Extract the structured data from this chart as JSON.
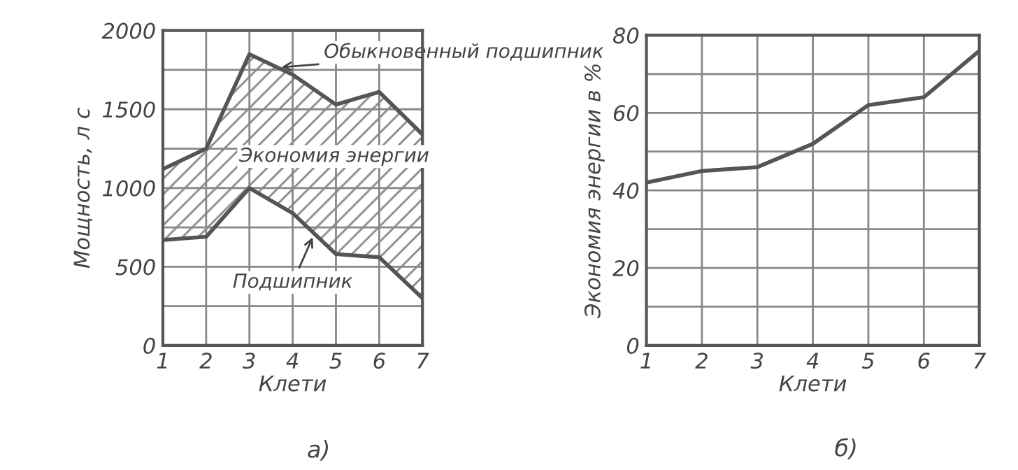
{
  "chart_data": [
    {
      "type": "line",
      "xlabel": "Клети",
      "ylabel": "Мощность, л с",
      "x": [
        1,
        2,
        3,
        4,
        5,
        6,
        7
      ],
      "xlim": [
        1,
        7
      ],
      "xticks": [
        1,
        2,
        3,
        4,
        5,
        6,
        7
      ],
      "ylim": [
        0,
        2000
      ],
      "yticks": [
        0,
        {
          "value": 250,
          "label": null
        },
        500,
        {
          "value": 750,
          "label": null
        },
        1000,
        {
          "value": 1250,
          "label": null
        },
        1500,
        {
          "value": 1750,
          "label": null
        },
        2000
      ],
      "grid": true,
      "legend": false,
      "series": [
        {
          "name": "Обыкновенный подшипник",
          "color": "#555555",
          "values": [
            1120,
            1250,
            1850,
            1720,
            1530,
            1610,
            1340
          ],
          "lower": [
            670,
            690,
            1000,
            840,
            580,
            560,
            300
          ],
          "upper": [
            1120,
            1250,
            1850,
            1720,
            1530,
            1610,
            1340
          ]
        },
        {
          "name": "Подшипник",
          "color": "#555555",
          "values": [
            670,
            690,
            1000,
            840,
            580,
            560,
            300
          ]
        }
      ],
      "annotations": [
        "Экономия энергии",
        "а)"
      ]
    },
    {
      "type": "line",
      "xlabel": "Клети",
      "ylabel": "Экономия энергии в %",
      "x": [
        1,
        2,
        3,
        4,
        5,
        6,
        7
      ],
      "xlim": [
        1,
        7
      ],
      "xticks": [
        1,
        2,
        3,
        4,
        5,
        6,
        7
      ],
      "ylim": [
        0,
        80
      ],
      "yticks": [
        0,
        {
          "value": 10,
          "label": null
        },
        20,
        {
          "value": 30,
          "label": null
        },
        40,
        {
          "value": 50,
          "label": null
        },
        60,
        {
          "value": 70,
          "label": null
        },
        80
      ],
      "grid": true,
      "legend": false,
      "series": [
        {
          "color": "#555555",
          "values": [
            42,
            45,
            46,
            52,
            62,
            64,
            76
          ]
        }
      ],
      "annotations": [
        "б)"
      ]
    }
  ]
}
